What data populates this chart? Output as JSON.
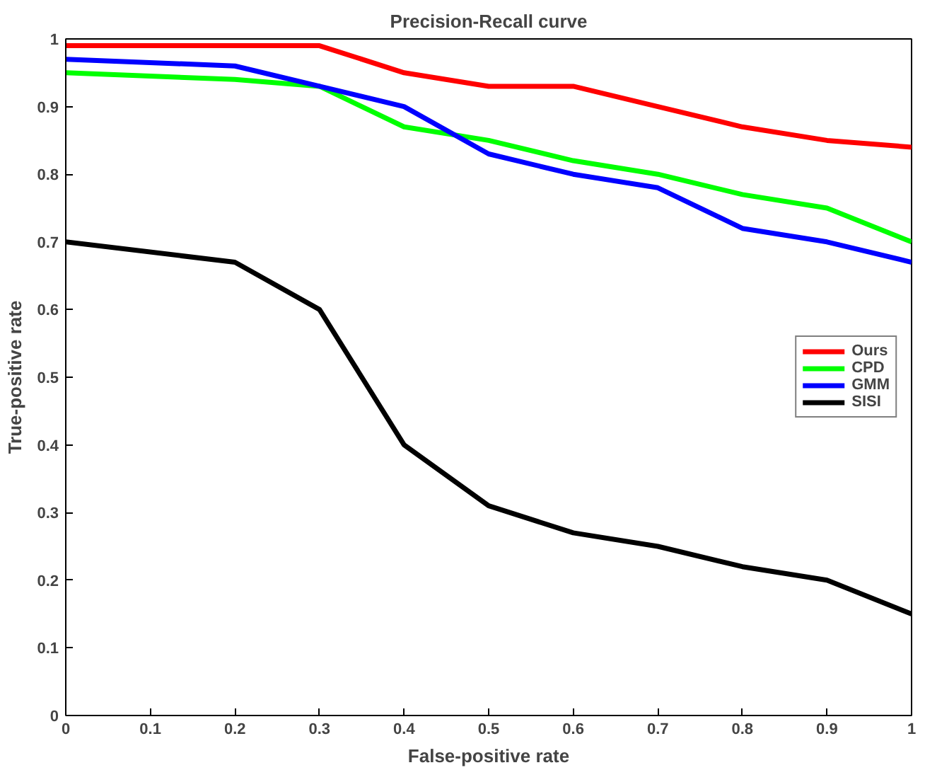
{
  "chart_data": {
    "type": "line",
    "title": "Precision-Recall curve",
    "xlabel": "False-positive rate",
    "ylabel": "True-positive rate",
    "x": [
      0,
      0.2,
      0.3,
      0.4,
      0.5,
      0.6,
      0.7,
      0.8,
      0.9,
      1
    ],
    "series": [
      {
        "name": "Ours",
        "color": "#ff0000",
        "values": [
          0.99,
          0.99,
          0.99,
          0.95,
          0.93,
          0.93,
          0.9,
          0.87,
          0.85,
          0.84
        ]
      },
      {
        "name": "CPD",
        "color": "#00ff00",
        "values": [
          0.95,
          0.94,
          0.93,
          0.87,
          0.85,
          0.82,
          0.8,
          0.77,
          0.75,
          0.7
        ]
      },
      {
        "name": "GMM",
        "color": "#0000ff",
        "values": [
          0.97,
          0.96,
          0.93,
          0.9,
          0.83,
          0.8,
          0.78,
          0.72,
          0.7,
          0.67
        ]
      },
      {
        "name": "SISI",
        "color": "#000000",
        "values": [
          0.7,
          0.67,
          0.6,
          0.4,
          0.31,
          0.27,
          0.25,
          0.22,
          0.2,
          0.15
        ]
      }
    ],
    "xlim": [
      0,
      1
    ],
    "ylim": [
      0,
      1
    ],
    "xticks": [
      0,
      0.1,
      0.2,
      0.3,
      0.4,
      0.5,
      0.6,
      0.7,
      0.8,
      0.9,
      1
    ],
    "yticks": [
      0,
      0.1,
      0.2,
      0.3,
      0.4,
      0.5,
      0.6,
      0.7,
      0.8,
      0.9,
      1
    ],
    "grid": false,
    "legend": "right",
    "line_style": "solid"
  }
}
